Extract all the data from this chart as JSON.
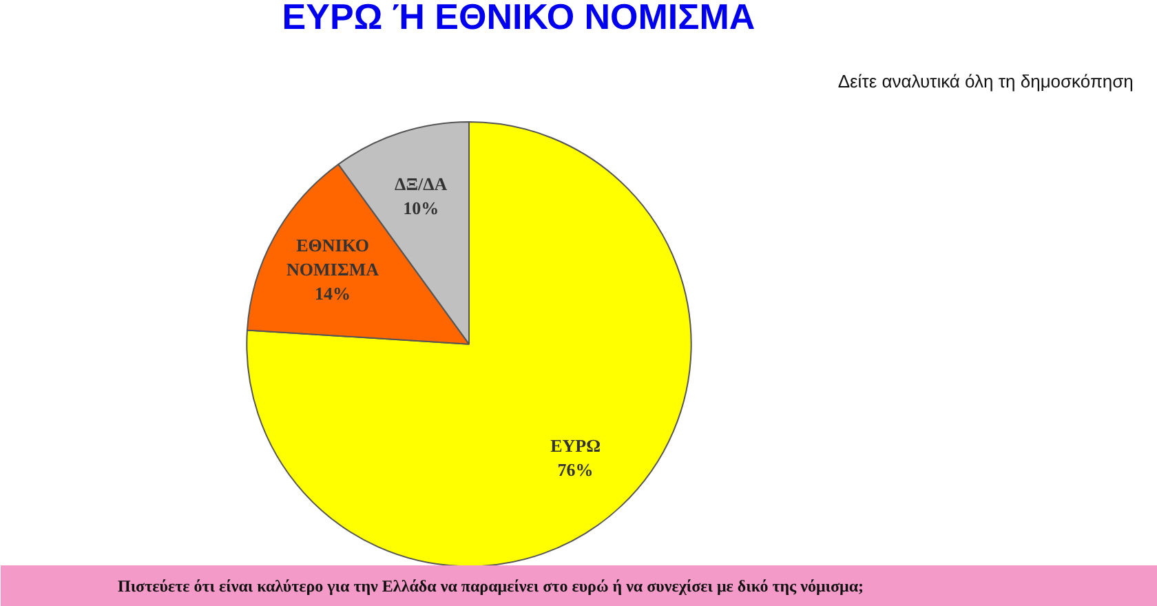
{
  "chart_data": {
    "type": "pie",
    "title": "ΕΥΡΩ Ή ΕΘΝΙΚΟ ΝΟΜΙΣΜΑ",
    "categories": [
      "ΕΥΡΩ",
      "ΕΘΝΙΚΟ ΝΟΜΙΣΜΑ",
      "ΔΞ/ΔΑ"
    ],
    "values": [
      76,
      14,
      10
    ],
    "colors": [
      "#ffff00",
      "#ff6600",
      "#c0c0c0"
    ],
    "value_labels": [
      "76%",
      "14%",
      "10%"
    ],
    "annotations": [
      "Δείτε αναλυτικά όλη τη δημοσκόπηση",
      "Πιστεύετε ότι είναι καλύτερο για την Ελλάδα να παραμείνει στο ευρώ ή να συνεχίσει με δικό της νόμισμα;"
    ]
  }
}
